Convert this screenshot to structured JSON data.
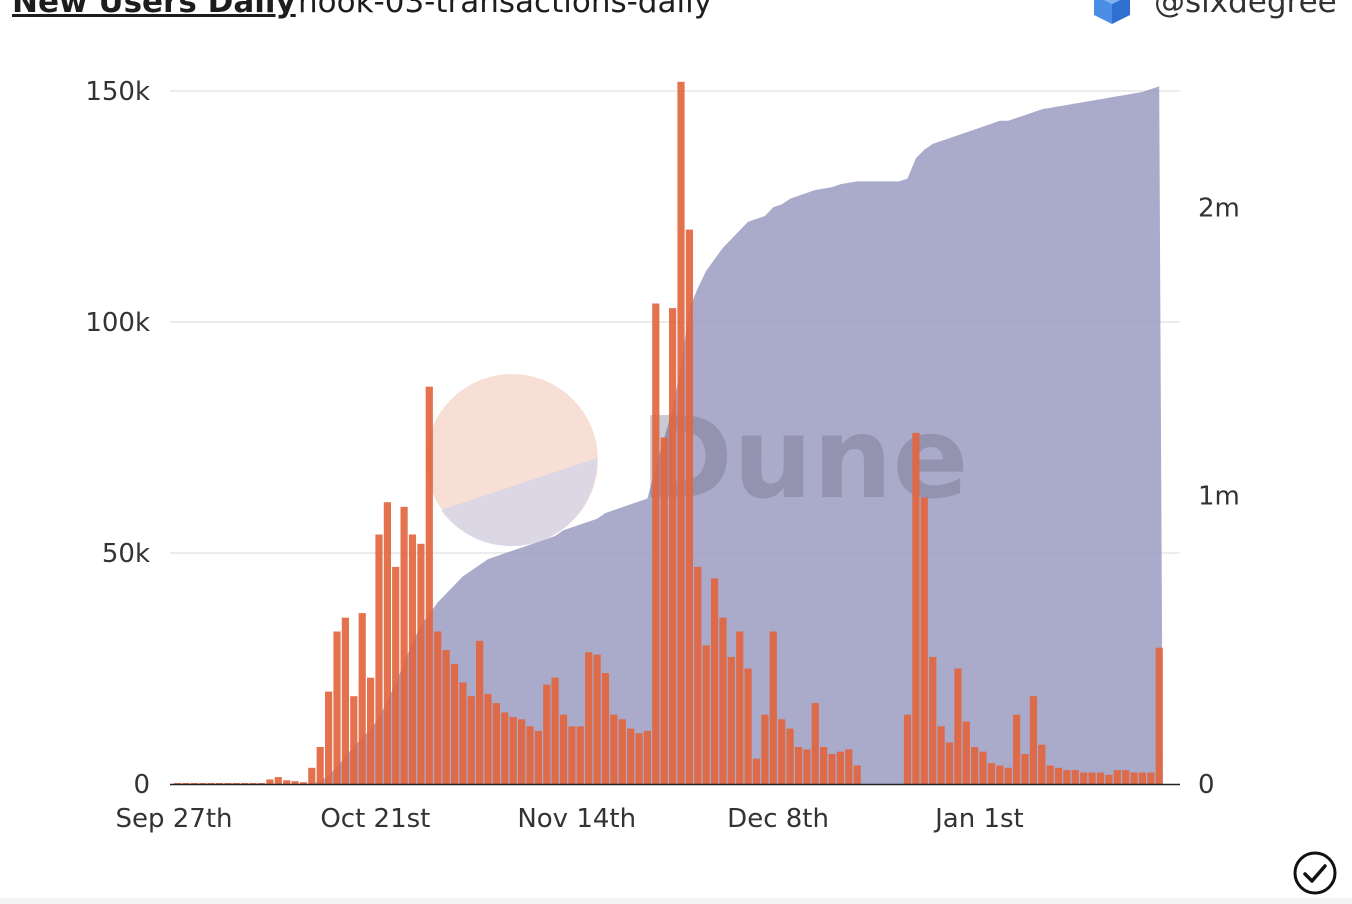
{
  "header": {
    "title": "New Users Daily",
    "query_name": "hook-03-transactions-daily",
    "author": "@sixdegree",
    "author_icon": "cube-stack-icon"
  },
  "watermark": {
    "text": "Dune"
  },
  "footer": {
    "status_icon": "checkmark-circle-icon"
  },
  "colors": {
    "bars": "#e2663f",
    "area": "#9b9bc2",
    "grid": "#ececec",
    "axis_text": "#333333"
  },
  "chart_data": {
    "type": "bar",
    "x_tick_labels": [
      "Sep 27th",
      "Oct 21st",
      "Nov 14th",
      "Dec 8th",
      "Jan 1st"
    ],
    "x_tick_day_index": [
      0,
      24,
      48,
      72,
      96
    ],
    "y_left": {
      "range": [
        0,
        150000
      ],
      "tick_values": [
        0,
        50000,
        100000,
        150000
      ],
      "tick_labels": [
        "0",
        "50k",
        "100k",
        "150k"
      ]
    },
    "y_right": {
      "range": [
        0,
        2400000
      ],
      "tick_values": [
        0,
        1000000,
        2000000
      ],
      "tick_labels": [
        "0",
        "1m",
        "2m"
      ]
    },
    "grid": true,
    "legend": "none",
    "series": [
      {
        "type": "bar",
        "axis": "left",
        "values": [
          200,
          150,
          200,
          150,
          150,
          150,
          150,
          150,
          150,
          150,
          150,
          1000,
          1500,
          800,
          600,
          400,
          3500,
          8000,
          20000,
          33000,
          36000,
          19000,
          37000,
          23000,
          54000,
          61000,
          47000,
          60000,
          54000,
          52000,
          86000,
          33000,
          29000,
          26000,
          22000,
          19000,
          31000,
          19500,
          17500,
          15500,
          14500,
          14000,
          12500,
          11500,
          21500,
          23000,
          15000,
          12500,
          12500,
          28500,
          28000,
          24000,
          15000,
          14000,
          12000,
          11000,
          11500,
          104000,
          75000,
          103000,
          152000,
          120000,
          47000,
          30000,
          44500,
          36000,
          27500,
          33000,
          25000,
          5500,
          15000,
          33000,
          14000,
          12000,
          8000,
          7500,
          17500,
          8000,
          6500,
          7000,
          7500,
          4000,
          0,
          0,
          0,
          0,
          0,
          15000,
          76000,
          62000,
          27500,
          12500,
          9000,
          25000,
          13500,
          8000,
          7000,
          4500,
          4000,
          3500,
          15000,
          6500,
          19000,
          8500,
          4000,
          3500,
          3000,
          3000,
          2500,
          2500,
          2500,
          2000,
          3000,
          3000,
          2500,
          2500,
          2500,
          29500
        ]
      },
      {
        "type": "area",
        "axis": "right",
        "values": [
          0,
          0,
          0,
          0,
          0,
          0,
          0,
          0,
          0,
          0,
          0,
          0,
          0,
          0,
          0,
          0,
          0,
          10000,
          30000,
          60000,
          95000,
          130000,
          160000,
          190000,
          230000,
          290000,
          350000,
          420000,
          490000,
          550000,
          590000,
          630000,
          660000,
          690000,
          720000,
          740000,
          760000,
          780000,
          790000,
          800000,
          810000,
          820000,
          830000,
          840000,
          850000,
          860000,
          880000,
          890000,
          900000,
          910000,
          920000,
          940000,
          950000,
          960000,
          970000,
          980000,
          990000,
          1100000,
          1200000,
          1300000,
          1450000,
          1650000,
          1720000,
          1780000,
          1820000,
          1860000,
          1890000,
          1920000,
          1950000,
          1960000,
          1970000,
          2000000,
          2010000,
          2030000,
          2040000,
          2050000,
          2060000,
          2065000,
          2070000,
          2080000,
          2085000,
          2090000,
          2090000,
          2090000,
          2090000,
          2090000,
          2090000,
          2100000,
          2170000,
          2200000,
          2220000,
          2230000,
          2240000,
          2250000,
          2260000,
          2270000,
          2280000,
          2290000,
          2300000,
          2300000,
          2310000,
          2320000,
          2330000,
          2340000,
          2345000,
          2350000,
          2355000,
          2360000,
          2365000,
          2370000,
          2375000,
          2380000,
          2385000,
          2390000,
          2395000,
          2400000,
          2410000,
          2420000
        ]
      }
    ]
  }
}
